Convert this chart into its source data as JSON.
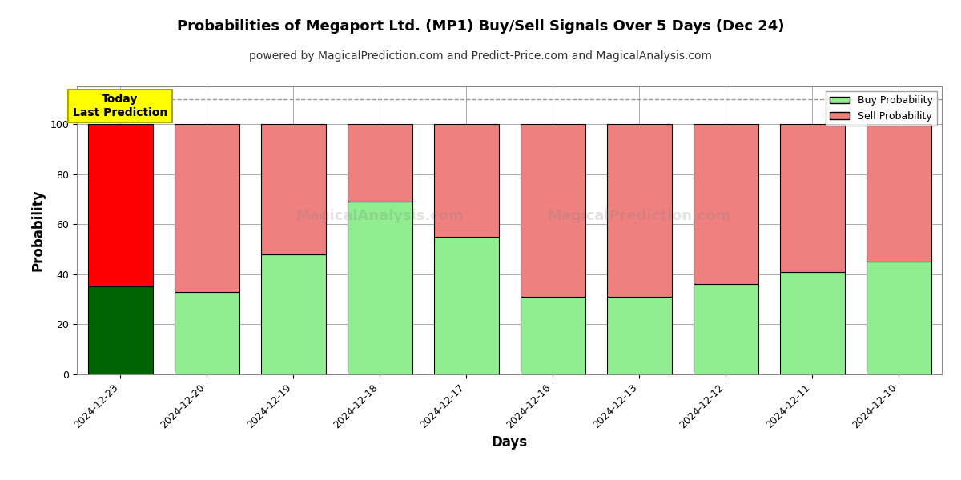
{
  "title": "Probabilities of Megaport Ltd. (MP1) Buy/Sell Signals Over 5 Days (Dec 24)",
  "subtitle": "powered by MagicalPrediction.com and Predict-Price.com and MagicalAnalysis.com",
  "xlabel": "Days",
  "ylabel": "Probability",
  "watermark_line1": "MagicalAnalysis.com",
  "watermark_line2": "MagicalPrediction.com",
  "categories": [
    "2024-12-23",
    "2024-12-20",
    "2024-12-19",
    "2024-12-18",
    "2024-12-17",
    "2024-12-16",
    "2024-12-13",
    "2024-12-12",
    "2024-12-11",
    "2024-12-10"
  ],
  "buy_values": [
    35,
    33,
    48,
    69,
    55,
    31,
    31,
    36,
    41,
    45
  ],
  "sell_values": [
    65,
    67,
    52,
    31,
    45,
    69,
    69,
    64,
    59,
    55
  ],
  "today_buy_color": "#006400",
  "today_sell_color": "#FF0000",
  "buy_color": "#90EE90",
  "sell_color": "#F08080",
  "bar_edgecolor": "#000000",
  "today_label": "Today\nLast Prediction",
  "today_label_bg": "#FFFF00",
  "legend_buy_label": "Buy Probability",
  "legend_sell_label": "Sell Probability",
  "ylim": [
    0,
    115
  ],
  "yticks": [
    0,
    20,
    40,
    60,
    80,
    100
  ],
  "dashed_line_y": 110,
  "background_color": "#FFFFFF",
  "grid_color": "#AAAAAA",
  "title_fontsize": 13,
  "subtitle_fontsize": 10,
  "axis_label_fontsize": 12,
  "tick_fontsize": 9,
  "bar_width": 0.75
}
